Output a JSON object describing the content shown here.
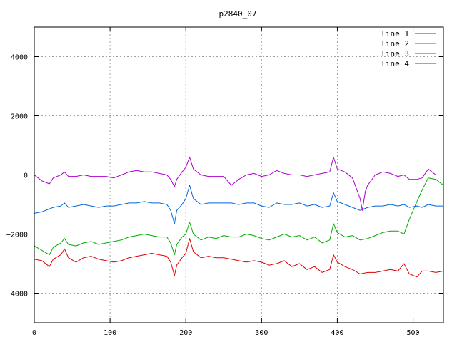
{
  "chart_data": {
    "type": "line",
    "title": "p2840_07",
    "xlabel": "",
    "ylabel": "",
    "xlim": [
      0,
      540
    ],
    "ylim": [
      -5000,
      5000
    ],
    "x_ticks": [
      0,
      100,
      200,
      300,
      400,
      500
    ],
    "y_ticks": [
      -4000,
      -2000,
      0,
      2000,
      4000
    ],
    "x_tick_labels": [
      "0",
      "100",
      "200",
      "300",
      "400",
      "500"
    ],
    "y_tick_labels": [
      "−4000",
      "−2000",
      "0",
      "2000",
      "4000"
    ],
    "grid": true,
    "legend_position": "top-right",
    "series": [
      {
        "name": "line 1",
        "color": "#dd0000",
        "points": [
          [
            0,
            -2850
          ],
          [
            10,
            -2900
          ],
          [
            20,
            -3100
          ],
          [
            25,
            -2850
          ],
          [
            35,
            -2700
          ],
          [
            40,
            -2500
          ],
          [
            45,
            -2800
          ],
          [
            55,
            -2950
          ],
          [
            65,
            -2800
          ],
          [
            75,
            -2750
          ],
          [
            85,
            -2850
          ],
          [
            95,
            -2900
          ],
          [
            105,
            -2950
          ],
          [
            115,
            -2900
          ],
          [
            125,
            -2800
          ],
          [
            135,
            -2750
          ],
          [
            145,
            -2700
          ],
          [
            155,
            -2650
          ],
          [
            165,
            -2700
          ],
          [
            175,
            -2750
          ],
          [
            180,
            -2950
          ],
          [
            185,
            -3400
          ],
          [
            188,
            -3050
          ],
          [
            195,
            -2800
          ],
          [
            200,
            -2650
          ],
          [
            205,
            -2150
          ],
          [
            210,
            -2600
          ],
          [
            220,
            -2800
          ],
          [
            230,
            -2750
          ],
          [
            240,
            -2800
          ],
          [
            250,
            -2800
          ],
          [
            260,
            -2850
          ],
          [
            270,
            -2900
          ],
          [
            280,
            -2950
          ],
          [
            290,
            -2900
          ],
          [
            300,
            -2950
          ],
          [
            310,
            -3050
          ],
          [
            320,
            -3000
          ],
          [
            330,
            -2900
          ],
          [
            340,
            -3100
          ],
          [
            350,
            -3000
          ],
          [
            360,
            -3200
          ],
          [
            370,
            -3100
          ],
          [
            380,
            -3300
          ],
          [
            390,
            -3200
          ],
          [
            395,
            -2700
          ],
          [
            400,
            -2950
          ],
          [
            410,
            -3100
          ],
          [
            420,
            -3200
          ],
          [
            430,
            -3350
          ],
          [
            440,
            -3300
          ],
          [
            450,
            -3300
          ],
          [
            460,
            -3250
          ],
          [
            470,
            -3200
          ],
          [
            480,
            -3250
          ],
          [
            488,
            -3000
          ],
          [
            495,
            -3350
          ],
          [
            505,
            -3450
          ],
          [
            512,
            -3250
          ],
          [
            520,
            -3250
          ],
          [
            530,
            -3300
          ],
          [
            540,
            -3250
          ]
        ]
      },
      {
        "name": "line 2",
        "color": "#00aa00",
        "points": [
          [
            0,
            -2400
          ],
          [
            10,
            -2550
          ],
          [
            20,
            -2700
          ],
          [
            25,
            -2450
          ],
          [
            35,
            -2300
          ],
          [
            40,
            -2150
          ],
          [
            45,
            -2350
          ],
          [
            55,
            -2400
          ],
          [
            65,
            -2300
          ],
          [
            75,
            -2250
          ],
          [
            85,
            -2350
          ],
          [
            95,
            -2300
          ],
          [
            105,
            -2250
          ],
          [
            115,
            -2200
          ],
          [
            125,
            -2100
          ],
          [
            135,
            -2050
          ],
          [
            145,
            -2000
          ],
          [
            155,
            -2050
          ],
          [
            165,
            -2100
          ],
          [
            175,
            -2100
          ],
          [
            180,
            -2300
          ],
          [
            185,
            -2700
          ],
          [
            188,
            -2350
          ],
          [
            195,
            -2100
          ],
          [
            200,
            -2000
          ],
          [
            205,
            -1600
          ],
          [
            210,
            -2000
          ],
          [
            220,
            -2200
          ],
          [
            230,
            -2100
          ],
          [
            240,
            -2150
          ],
          [
            250,
            -2050
          ],
          [
            260,
            -2100
          ],
          [
            270,
            -2100
          ],
          [
            280,
            -2000
          ],
          [
            290,
            -2050
          ],
          [
            300,
            -2150
          ],
          [
            310,
            -2200
          ],
          [
            320,
            -2100
          ],
          [
            330,
            -2000
          ],
          [
            340,
            -2100
          ],
          [
            350,
            -2050
          ],
          [
            360,
            -2200
          ],
          [
            370,
            -2100
          ],
          [
            380,
            -2300
          ],
          [
            390,
            -2200
          ],
          [
            395,
            -1650
          ],
          [
            400,
            -1950
          ],
          [
            410,
            -2100
          ],
          [
            420,
            -2050
          ],
          [
            430,
            -2200
          ],
          [
            440,
            -2150
          ],
          [
            450,
            -2050
          ],
          [
            460,
            -1950
          ],
          [
            470,
            -1900
          ],
          [
            480,
            -1900
          ],
          [
            488,
            -2000
          ],
          [
            495,
            -1500
          ],
          [
            505,
            -900
          ],
          [
            512,
            -500
          ],
          [
            520,
            -100
          ],
          [
            530,
            -150
          ],
          [
            540,
            -350
          ]
        ]
      },
      {
        "name": "line 3",
        "color": "#0066dd",
        "points": [
          [
            0,
            -1300
          ],
          [
            10,
            -1250
          ],
          [
            20,
            -1150
          ],
          [
            25,
            -1100
          ],
          [
            35,
            -1050
          ],
          [
            40,
            -950
          ],
          [
            45,
            -1100
          ],
          [
            55,
            -1050
          ],
          [
            65,
            -1000
          ],
          [
            75,
            -1050
          ],
          [
            85,
            -1100
          ],
          [
            95,
            -1050
          ],
          [
            105,
            -1050
          ],
          [
            115,
            -1000
          ],
          [
            125,
            -950
          ],
          [
            135,
            -950
          ],
          [
            145,
            -900
          ],
          [
            155,
            -950
          ],
          [
            165,
            -950
          ],
          [
            175,
            -1000
          ],
          [
            180,
            -1200
          ],
          [
            185,
            -1650
          ],
          [
            188,
            -1200
          ],
          [
            195,
            -1000
          ],
          [
            200,
            -800
          ],
          [
            205,
            -350
          ],
          [
            210,
            -800
          ],
          [
            220,
            -1000
          ],
          [
            230,
            -950
          ],
          [
            240,
            -950
          ],
          [
            250,
            -950
          ],
          [
            260,
            -950
          ],
          [
            270,
            -1000
          ],
          [
            280,
            -950
          ],
          [
            290,
            -950
          ],
          [
            300,
            -1050
          ],
          [
            310,
            -1100
          ],
          [
            320,
            -950
          ],
          [
            330,
            -1000
          ],
          [
            340,
            -1000
          ],
          [
            350,
            -950
          ],
          [
            360,
            -1050
          ],
          [
            370,
            -1000
          ],
          [
            380,
            -1100
          ],
          [
            390,
            -1050
          ],
          [
            395,
            -600
          ],
          [
            400,
            -900
          ],
          [
            410,
            -1000
          ],
          [
            420,
            -1100
          ],
          [
            430,
            -1200
          ],
          [
            440,
            -1100
          ],
          [
            450,
            -1050
          ],
          [
            460,
            -1050
          ],
          [
            470,
            -1000
          ],
          [
            480,
            -1050
          ],
          [
            488,
            -1000
          ],
          [
            495,
            -1100
          ],
          [
            505,
            -1050
          ],
          [
            512,
            -1100
          ],
          [
            520,
            -1000
          ],
          [
            530,
            -1050
          ],
          [
            540,
            -1050
          ]
        ]
      },
      {
        "name": "line 4",
        "color": "#aa00cc",
        "points": [
          [
            0,
            0
          ],
          [
            10,
            -200
          ],
          [
            20,
            -300
          ],
          [
            25,
            -100
          ],
          [
            35,
            0
          ],
          [
            40,
            100
          ],
          [
            45,
            -50
          ],
          [
            55,
            -50
          ],
          [
            65,
            0
          ],
          [
            75,
            -50
          ],
          [
            85,
            -50
          ],
          [
            95,
            -50
          ],
          [
            105,
            -100
          ],
          [
            115,
            0
          ],
          [
            125,
            100
          ],
          [
            135,
            150
          ],
          [
            145,
            100
          ],
          [
            155,
            100
          ],
          [
            165,
            50
          ],
          [
            175,
            0
          ],
          [
            180,
            -150
          ],
          [
            185,
            -400
          ],
          [
            188,
            -150
          ],
          [
            195,
            100
          ],
          [
            200,
            250
          ],
          [
            205,
            600
          ],
          [
            210,
            200
          ],
          [
            220,
            0
          ],
          [
            230,
            -50
          ],
          [
            240,
            -50
          ],
          [
            250,
            -50
          ],
          [
            260,
            -350
          ],
          [
            270,
            -150
          ],
          [
            280,
            0
          ],
          [
            290,
            50
          ],
          [
            300,
            -50
          ],
          [
            310,
            0
          ],
          [
            320,
            150
          ],
          [
            330,
            50
          ],
          [
            340,
            0
          ],
          [
            350,
            0
          ],
          [
            360,
            -50
          ],
          [
            370,
            0
          ],
          [
            380,
            50
          ],
          [
            390,
            100
          ],
          [
            395,
            600
          ],
          [
            400,
            200
          ],
          [
            410,
            100
          ],
          [
            420,
            -100
          ],
          [
            425,
            -450
          ],
          [
            430,
            -800
          ],
          [
            433,
            -1200
          ],
          [
            437,
            -550
          ],
          [
            440,
            -350
          ],
          [
            450,
            0
          ],
          [
            460,
            100
          ],
          [
            470,
            50
          ],
          [
            480,
            -50
          ],
          [
            488,
            0
          ],
          [
            495,
            -150
          ],
          [
            505,
            -150
          ],
          [
            512,
            -100
          ],
          [
            520,
            200
          ],
          [
            530,
            0
          ],
          [
            540,
            0
          ]
        ]
      }
    ]
  }
}
